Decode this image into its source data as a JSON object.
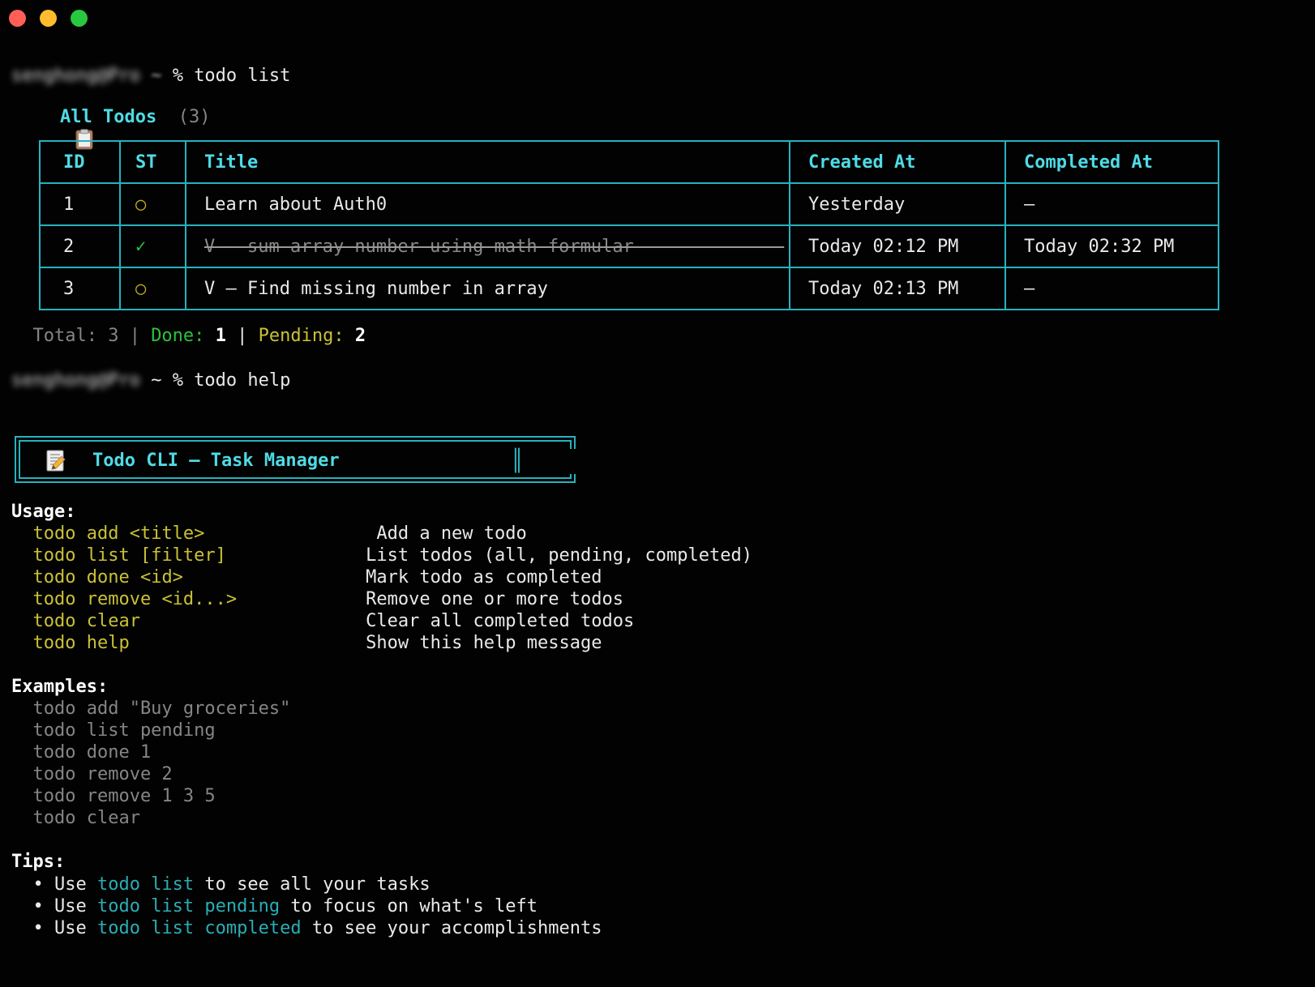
{
  "colors": {
    "background": "#020202",
    "border_teal": "#26b2bd",
    "bright_cyan": "#4fdbe5",
    "tips_teal": "#2aadb4",
    "command_yellow": "#c9c135",
    "done_green": "#29c33c",
    "muted_gray": "#858585",
    "traffic_red": "#ff5f57",
    "traffic_yellow": "#febc2e",
    "traffic_green": "#28c840"
  },
  "prompt1": [
    {
      "t": "senghong@Pro",
      "c": "blur"
    },
    {
      "t": " ",
      "c": "w"
    },
    {
      "t": "~",
      "c": "blur2"
    },
    {
      "t": " % todo list",
      "c": "w"
    }
  ],
  "todos_header": {
    "icon": "clipboard-icon",
    "segments": [
      {
        "t": "All Todos",
        "c": "cyb"
      },
      {
        "t": "  ",
        "c": "w"
      },
      {
        "t": "(3)",
        "c": "g"
      }
    ]
  },
  "table": {
    "headers": [
      "ID",
      "ST",
      "Title",
      "Created At",
      "Completed At"
    ],
    "rows": [
      {
        "id": "1",
        "st": "○",
        "st_color": "oy",
        "title": "Learn about Auth0",
        "struck": false,
        "created": "Yesterday",
        "completed": "—"
      },
      {
        "id": "2",
        "st": "✓",
        "st_color": "gn",
        "title": "V — sum array number using math formular",
        "struck": true,
        "created": "Today 02:12 PM",
        "completed": "Today 02:32 PM"
      },
      {
        "id": "3",
        "st": "○",
        "st_color": "oy",
        "title": "V — Find missing number in array",
        "struck": false,
        "created": "Today 02:13 PM",
        "completed": "—"
      }
    ]
  },
  "summary": [
    {
      "t": "  Total: 3 | ",
      "c": "g"
    },
    {
      "t": "Done:",
      "c": "gn"
    },
    {
      "t": " ",
      "c": "w"
    },
    {
      "t": "1",
      "c": "wb"
    },
    {
      "t": " | ",
      "c": "w"
    },
    {
      "t": "Pending:",
      "c": "y"
    },
    {
      "t": " ",
      "c": "w"
    },
    {
      "t": "2",
      "c": "wb"
    }
  ],
  "prompt2": [
    {
      "t": "senghong@Pro",
      "c": "blur"
    },
    {
      "t": " ~ % todo help",
      "c": "w"
    }
  ],
  "banner": {
    "icon": "memo-icon",
    "title": "Todo CLI — Task Manager",
    "right_glyph": "║"
  },
  "help": {
    "usage_heading": [
      {
        "t": "Usage:",
        "c": "wb"
      }
    ],
    "usage": [
      [
        {
          "t": "  ",
          "c": "w"
        },
        {
          "t": "todo add <title>",
          "c": "y"
        },
        {
          "t": "                Add a new todo",
          "c": "w"
        }
      ],
      [
        {
          "t": "  ",
          "c": "w"
        },
        {
          "t": "todo list [filter]",
          "c": "y"
        },
        {
          "t": "             List todos (all, pending, completed)",
          "c": "w"
        }
      ],
      [
        {
          "t": "  ",
          "c": "w"
        },
        {
          "t": "todo done <id>",
          "c": "y"
        },
        {
          "t": "                 Mark todo as completed",
          "c": "w"
        }
      ],
      [
        {
          "t": "  ",
          "c": "w"
        },
        {
          "t": "todo remove <id...>",
          "c": "y"
        },
        {
          "t": "            Remove one or more todos",
          "c": "w"
        }
      ],
      [
        {
          "t": "  ",
          "c": "w"
        },
        {
          "t": "todo clear",
          "c": "y"
        },
        {
          "t": "                     Clear all completed todos",
          "c": "w"
        }
      ],
      [
        {
          "t": "  ",
          "c": "w"
        },
        {
          "t": "todo help",
          "c": "y"
        },
        {
          "t": "                      Show this help message",
          "c": "w"
        }
      ]
    ],
    "examples_heading": [
      {
        "t": "Examples:",
        "c": "wb"
      }
    ],
    "examples": [
      [
        {
          "t": "  todo add \"Buy groceries\"",
          "c": "g"
        }
      ],
      [
        {
          "t": "  todo list pending",
          "c": "g"
        }
      ],
      [
        {
          "t": "  todo done 1",
          "c": "g"
        }
      ],
      [
        {
          "t": "  todo remove 2",
          "c": "g"
        }
      ],
      [
        {
          "t": "  todo remove 1 3 5",
          "c": "g"
        }
      ],
      [
        {
          "t": "  todo clear",
          "c": "g"
        }
      ]
    ],
    "tips_heading": [
      {
        "t": "Tips:",
        "c": "wb"
      }
    ],
    "tips": [
      [
        {
          "t": "  • Use ",
          "c": "w"
        },
        {
          "t": "todo list",
          "c": "tl"
        },
        {
          "t": " to see all your tasks",
          "c": "w"
        }
      ],
      [
        {
          "t": "  • Use ",
          "c": "w"
        },
        {
          "t": "todo list pending",
          "c": "tl"
        },
        {
          "t": " to focus on what's left",
          "c": "w"
        }
      ],
      [
        {
          "t": "  • Use ",
          "c": "w"
        },
        {
          "t": "todo list completed",
          "c": "tl"
        },
        {
          "t": " to see your accomplishments",
          "c": "w"
        }
      ]
    ]
  }
}
